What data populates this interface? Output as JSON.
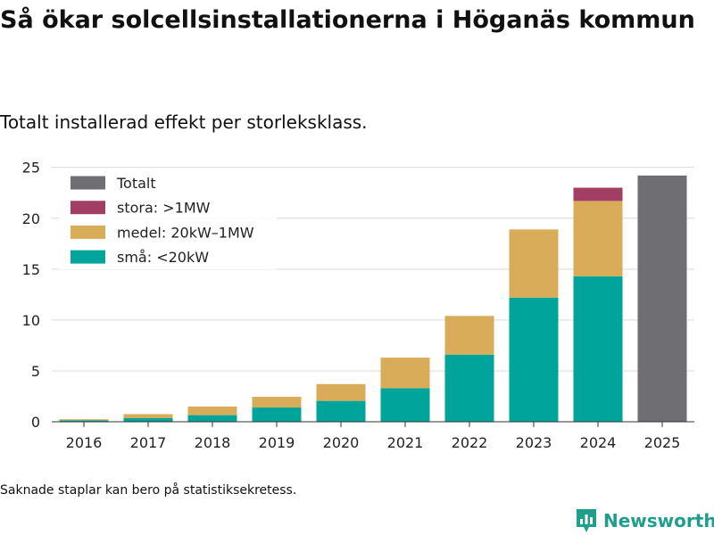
{
  "title": "Så ökar solcellsinstallationerna i Höganäs kommun",
  "subtitle": "Totalt installerad effekt per storleksklass.",
  "note": "Saknade staplar kan bero på statistiksekretess.",
  "brand": {
    "name": "Newsworthy",
    "icon": "newsworthy-logo-icon"
  },
  "colors": {
    "total": "#6e6e73",
    "large": "#a23d63",
    "medium": "#d8ac58",
    "small": "#00a49a",
    "grid": "#d9d9d9",
    "axis": "#333333"
  },
  "chart_data": {
    "type": "bar",
    "stacked": true,
    "categories": [
      "2016",
      "2017",
      "2018",
      "2019",
      "2020",
      "2021",
      "2022",
      "2023",
      "2024",
      "2025"
    ],
    "series": [
      {
        "name": "små: <20kW",
        "key": "small",
        "values": [
          0.15,
          0.35,
          0.65,
          1.4,
          2.05,
          3.3,
          6.6,
          12.2,
          14.3,
          null
        ]
      },
      {
        "name": "medel: 20kW–1MW",
        "key": "medium",
        "values": [
          0.1,
          0.4,
          0.85,
          1.05,
          1.65,
          3.0,
          3.8,
          6.7,
          7.4,
          null
        ]
      },
      {
        "name": "stora: >1MW",
        "key": "large",
        "values": [
          null,
          null,
          null,
          null,
          null,
          null,
          null,
          null,
          1.3,
          null
        ]
      },
      {
        "name": "Totalt",
        "key": "total",
        "values": [
          null,
          null,
          null,
          null,
          null,
          null,
          null,
          null,
          null,
          24.2
        ]
      }
    ],
    "legend_order": [
      "total",
      "large",
      "medium",
      "small"
    ],
    "yticks": [
      0,
      5,
      10,
      15,
      20,
      25
    ],
    "ylim": [
      0,
      25.5
    ],
    "xlabel": "",
    "ylabel": "",
    "grid": true,
    "legend_position": "top-left"
  }
}
